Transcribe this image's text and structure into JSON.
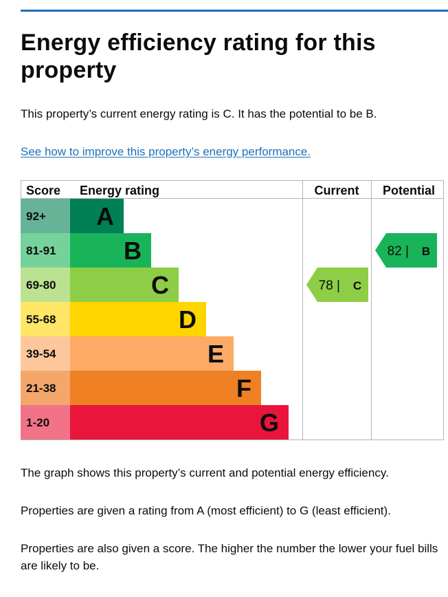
{
  "page": {
    "title": "Energy efficiency rating for this property",
    "summary": "This property’s current energy rating is C. It has the potential to be B.",
    "link_text": "See how to improve this property’s energy performance.",
    "paragraphs": [
      "The graph shows this property’s current and potential energy efficiency.",
      "Properties are given a rating from A (most efficient) to G (least efficient).",
      "Properties are also given a score. The higher the number the lower your fuel bills are likely to be."
    ]
  },
  "chart_data": {
    "type": "table",
    "headers": {
      "score": "Score",
      "rating": "Energy rating",
      "current": "Current",
      "potential": "Potential"
    },
    "bands": [
      {
        "letter": "A",
        "range": "92+",
        "color": "#008054",
        "score_color": "#66b398"
      },
      {
        "letter": "B",
        "range": "81-91",
        "color": "#19b459",
        "score_color": "#75d29b"
      },
      {
        "letter": "C",
        "range": "69-80",
        "color": "#8dce46",
        "score_color": "#bbe290"
      },
      {
        "letter": "D",
        "range": "55-68",
        "color": "#ffd500",
        "score_color": "#ffe666"
      },
      {
        "letter": "E",
        "range": "39-54",
        "color": "#fcaa65",
        "score_color": "#fdc79b"
      },
      {
        "letter": "F",
        "range": "21-38",
        "color": "#ef8023",
        "score_color": "#f4a66b"
      },
      {
        "letter": "G",
        "range": "1-20",
        "color": "#e9153b",
        "score_color": "#f27388"
      }
    ],
    "current": {
      "score": 78,
      "letter": "C",
      "label": "78 |",
      "color": "#8dce46"
    },
    "potential": {
      "score": 82,
      "letter": "B",
      "label": "82 |",
      "color": "#19b459"
    }
  }
}
